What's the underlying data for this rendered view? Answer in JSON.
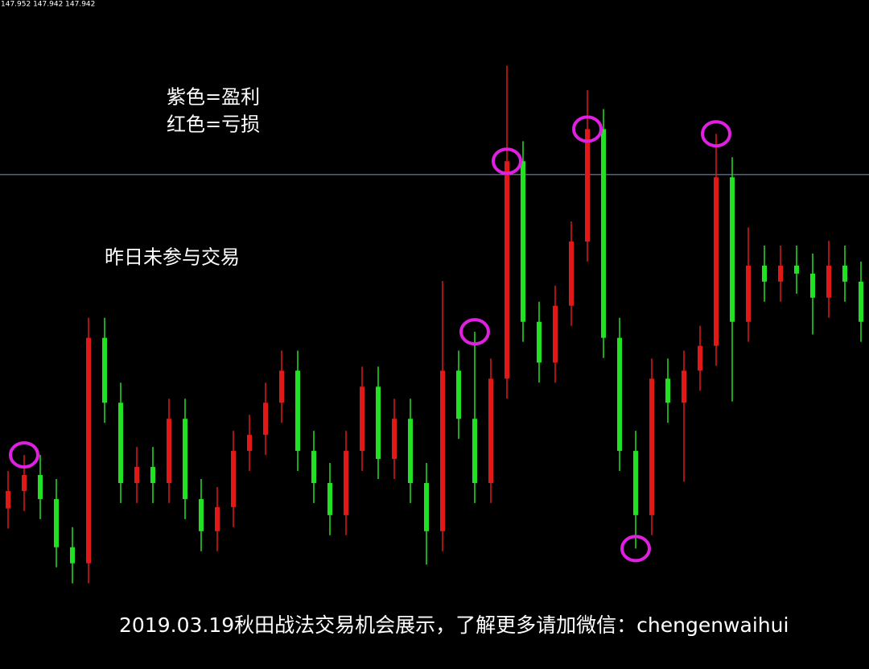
{
  "header": {
    "quote": "147.952 147.942 147.942"
  },
  "legend": {
    "profit": "紫色=盈利",
    "loss": "红色=亏损"
  },
  "note": "昨日未参与交易",
  "caption": "2019.03.19秋田战法交易机会展示，了解更多请加微信：chengenwaihui",
  "chart_data": {
    "type": "candlestick",
    "up_color": "#e01818",
    "down_color": "#22e022",
    "price_line_color": "#8a96b0",
    "marker_color": "#e020e0",
    "ylim": [
      0,
      100
    ],
    "price_line": 73.9,
    "candles": [
      [
        24,
        29.6,
        21,
        26.6
      ],
      [
        26.6,
        32,
        23.6,
        29.0
      ],
      [
        29.0,
        32,
        22.4,
        25.4
      ],
      [
        25.4,
        28.4,
        15.2,
        18.2
      ],
      [
        18.2,
        21.2,
        12.8,
        15.8
      ],
      [
        15.8,
        52.5,
        12.8,
        49.5
      ],
      [
        49.5,
        52.5,
        36.8,
        39.8
      ],
      [
        39.8,
        42.8,
        24.8,
        27.8
      ],
      [
        27.8,
        33.2,
        24.8,
        30.2
      ],
      [
        30.2,
        33.2,
        24.8,
        27.8
      ],
      [
        27.8,
        40.4,
        24.8,
        37.4
      ],
      [
        37.4,
        40.4,
        22.4,
        25.4
      ],
      [
        25.4,
        28.4,
        17.6,
        20.6
      ],
      [
        20.6,
        27.2,
        17.6,
        24.2
      ],
      [
        24.2,
        35.6,
        21.2,
        32.6
      ],
      [
        32.6,
        38,
        29.6,
        35.0
      ],
      [
        35.0,
        42.8,
        32,
        39.8
      ],
      [
        39.8,
        47.6,
        36.8,
        44.6
      ],
      [
        44.6,
        47.6,
        29.6,
        32.6
      ],
      [
        32.6,
        35.6,
        24.8,
        27.8
      ],
      [
        27.8,
        30.8,
        20,
        23.0
      ],
      [
        23.0,
        35.6,
        20,
        32.6
      ],
      [
        32.6,
        45.2,
        29.6,
        42.2
      ],
      [
        42.2,
        45.2,
        28.4,
        31.4
      ],
      [
        31.4,
        40.4,
        28.4,
        37.4
      ],
      [
        37.4,
        40.4,
        24.8,
        27.8
      ],
      [
        27.8,
        30.8,
        15.6,
        20.6
      ],
      [
        20.6,
        58,
        17.6,
        44.6
      ],
      [
        44.6,
        47.6,
        34.4,
        37.4
      ],
      [
        37.4,
        50.4,
        24.8,
        27.8
      ],
      [
        27.8,
        46.4,
        24.8,
        43.4
      ],
      [
        43.4,
        90.2,
        40.4,
        75.9
      ],
      [
        75.9,
        78.9,
        48.9,
        51.9
      ],
      [
        51.9,
        54.9,
        42.8,
        45.8
      ],
      [
        45.8,
        57.3,
        42.8,
        54.3
      ],
      [
        54.3,
        66.9,
        51.3,
        63.9
      ],
      [
        63.9,
        86.5,
        60.9,
        80.7
      ],
      [
        80.7,
        83.7,
        46.5,
        49.5
      ],
      [
        49.5,
        52.5,
        29.6,
        32.6
      ],
      [
        32.6,
        35.6,
        18,
        23.0
      ],
      [
        23.0,
        46.4,
        20,
        43.4
      ],
      [
        43.4,
        46.4,
        36.8,
        39.8
      ],
      [
        39.8,
        47.6,
        28,
        44.6
      ],
      [
        44.6,
        51.3,
        41.6,
        48.3
      ],
      [
        48.3,
        80,
        45.3,
        73.5
      ],
      [
        73.5,
        76.5,
        40,
        51.9
      ],
      [
        51.9,
        66,
        48.9,
        60.3
      ],
      [
        60.3,
        63.3,
        54.9,
        57.9
      ],
      [
        57.9,
        63.3,
        54.9,
        60.3
      ],
      [
        60.3,
        63.3,
        56.1,
        59.1
      ],
      [
        59.1,
        62.1,
        50,
        55.5
      ],
      [
        55.5,
        64,
        52.5,
        60.3
      ],
      [
        60.3,
        63.3,
        54.9,
        57.9
      ],
      [
        57.9,
        60.9,
        48.9,
        51.9
      ]
    ],
    "markers": [
      {
        "candle": 1,
        "at": "high"
      },
      {
        "candle": 29,
        "at": "high"
      },
      {
        "candle": 31,
        "at": "close"
      },
      {
        "candle": 36,
        "at": "close"
      },
      {
        "candle": 39,
        "at": "low"
      },
      {
        "candle": 44,
        "at": "high"
      }
    ]
  }
}
